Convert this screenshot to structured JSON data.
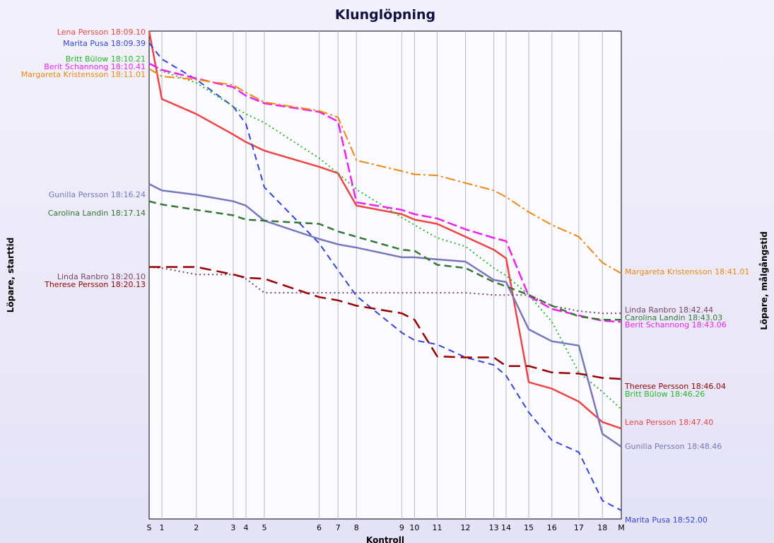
{
  "chart_data": {
    "type": "line",
    "title": "Klunglöpning",
    "xlabel": "Kontroll",
    "ylabel_left": "Löpare, starttid",
    "ylabel_right": "Löpare, målgångstid",
    "grid": "vertical",
    "x_ticks": [
      {
        "label": "S",
        "pos": 0
      },
      {
        "label": "1",
        "pos": 0.27
      },
      {
        "label": "2",
        "pos": 1.0
      },
      {
        "label": "3",
        "pos": 1.78
      },
      {
        "label": "4",
        "pos": 2.05
      },
      {
        "label": "5",
        "pos": 2.44
      },
      {
        "label": "6",
        "pos": 3.6
      },
      {
        "label": "7",
        "pos": 4.0
      },
      {
        "label": "8",
        "pos": 4.39
      },
      {
        "label": "9",
        "pos": 5.35
      },
      {
        "label": "10",
        "pos": 5.62
      },
      {
        "label": "11",
        "pos": 6.1
      },
      {
        "label": "12",
        "pos": 6.7
      },
      {
        "label": "13",
        "pos": 7.3
      },
      {
        "label": "14",
        "pos": 7.56
      },
      {
        "label": "15",
        "pos": 8.04
      },
      {
        "label": "16",
        "pos": 8.53
      },
      {
        "label": "17",
        "pos": 9.1
      },
      {
        "label": "18",
        "pos": 9.6
      },
      {
        "label": "M",
        "pos": 10.0
      }
    ],
    "y_range_minutes": [
      0,
      42
    ],
    "series": [
      {
        "name": "Lena Persson",
        "start_label": "Lena Persson 18:09.10",
        "finish_label": "Lena Persson 18:47.40",
        "color": "#ee4444",
        "dash": "",
        "width": 2.5,
        "y": [
          0,
          6.3,
          7.7,
          9.6,
          10.3,
          11.1,
          12.6,
          13.2,
          16.2,
          17.0,
          17.5,
          17.9,
          19.1,
          20.3,
          21.1,
          32.6,
          33.2,
          34.4,
          36.3,
          36.9
        ]
      },
      {
        "name": "Marita Pusa",
        "start_label": "Marita Pusa 18:09.39",
        "finish_label": "Marita Pusa 18:52.00",
        "color": "#3344dd",
        "dash": "9,6",
        "width": 2,
        "y": [
          1.1,
          2.6,
          4.5,
          7.0,
          8.6,
          14.5,
          19.7,
          22.2,
          24.6,
          28.0,
          28.7,
          29.1,
          30.3,
          31.0,
          32.0,
          35.4,
          38.0,
          39.1,
          43.6,
          44.5
        ]
      },
      {
        "name": "Britt Bülow",
        "start_label": "Britt Bülow 18:10.21",
        "finish_label": "Britt Bülow 18:46.26",
        "color": "#22bb22",
        "dash": "2,4",
        "width": 2,
        "y": [
          3.0,
          3.7,
          4.8,
          7.0,
          7.7,
          8.5,
          11.8,
          13.2,
          14.7,
          17.3,
          18.0,
          19.2,
          20.0,
          22.0,
          22.7,
          24.5,
          27.0,
          31.7,
          33.5,
          35.1
        ]
      },
      {
        "name": "Berit Schannong",
        "start_label": "Berit Schannong 18:10.41",
        "finish_label": "Berit Schannong 18:43.06",
        "color": "#ee22ee",
        "dash": "14,5",
        "width": 2.5,
        "y": [
          3.0,
          3.6,
          4.4,
          5.2,
          6.0,
          6.7,
          7.5,
          8.4,
          15.9,
          16.6,
          17.0,
          17.4,
          18.4,
          19.2,
          19.5,
          24.6,
          25.8,
          26.4,
          26.9,
          27.0
        ]
      },
      {
        "name": "Margareta Kristensson",
        "start_label": "Margareta Kristensson 18:11.01",
        "finish_label": "Margareta Kristensson 18:41.01",
        "color": "#ee8811",
        "dash": "14,4,3,4",
        "width": 2,
        "y": [
          3.5,
          4.2,
          4.5,
          5.0,
          5.7,
          6.6,
          7.4,
          8.0,
          12.0,
          13.0,
          13.3,
          13.4,
          14.1,
          14.8,
          15.4,
          16.8,
          18.0,
          19.1,
          21.5,
          22.5
        ]
      },
      {
        "name": "Gunilla Persson",
        "start_label": "Gunilla Persson 18:16.24",
        "finish_label": "Gunilla Persson 18:48.46",
        "color": "#7777bb",
        "dash": "",
        "width": 2.5,
        "y": [
          14.2,
          14.8,
          15.2,
          15.8,
          16.2,
          17.6,
          19.3,
          19.8,
          20.1,
          21.0,
          21.0,
          21.2,
          21.4,
          23.1,
          23.3,
          27.7,
          28.8,
          29.2,
          37.4,
          38.6
        ]
      },
      {
        "name": "Carolina Landin",
        "start_label": "Carolina Landin 18:17.14",
        "finish_label": "Carolina Landin 18:43.03",
        "color": "#337733",
        "dash": "10,6",
        "width": 2.5,
        "y": [
          15.8,
          16.1,
          16.6,
          17.1,
          17.5,
          17.6,
          17.9,
          18.6,
          19.1,
          20.3,
          20.4,
          21.7,
          22.0,
          23.3,
          23.7,
          24.5,
          25.5,
          26.5,
          26.8,
          26.8
        ]
      },
      {
        "name": "Linda Ranbro",
        "start_label": "Linda Ranbro 18:20.10",
        "finish_label": "Linda Ranbro 18:42.44",
        "color": "#774466",
        "dash": "2,4",
        "width": 2,
        "y": [
          21.9,
          22.0,
          22.6,
          22.6,
          23.0,
          24.3,
          24.3,
          24.3,
          24.3,
          24.3,
          24.3,
          24.3,
          24.3,
          24.5,
          24.5,
          24.5,
          25.5,
          26.0,
          26.2,
          26.2
        ]
      },
      {
        "name": "Therese Persson",
        "start_label": "Therese Persson 18:20.13",
        "finish_label": "Therese Persson 18:46.04",
        "color": "#990000",
        "dash": "16,8",
        "width": 2.5,
        "y": [
          21.9,
          21.9,
          21.9,
          22.6,
          22.9,
          23.0,
          24.7,
          25.0,
          25.5,
          26.2,
          26.8,
          30.2,
          30.3,
          30.3,
          31.1,
          31.1,
          31.7,
          31.8,
          32.2,
          32.3
        ]
      }
    ]
  }
}
